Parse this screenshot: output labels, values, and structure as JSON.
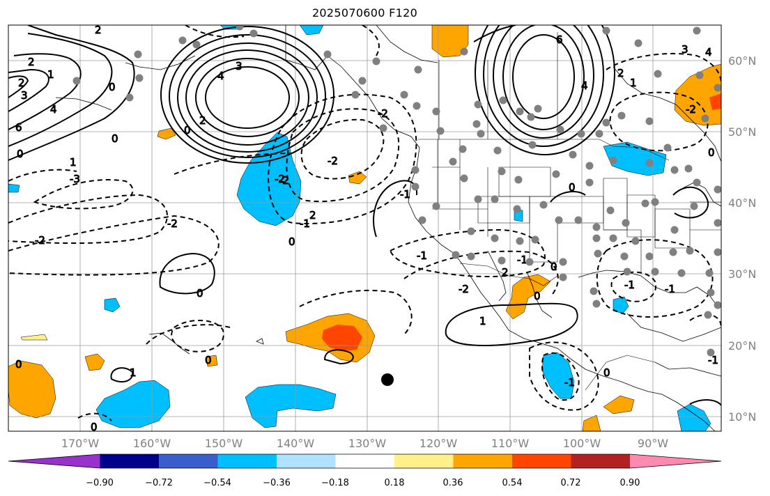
{
  "title": "2025070600 F120",
  "map": {
    "lon_ticks": [
      "170°W",
      "160°W",
      "150°W",
      "140°W",
      "130°W",
      "120°W",
      "110°W",
      "100°W",
      "90°W"
    ],
    "lat_ticks": [
      "60°N",
      "50°N",
      "40°N",
      "30°N",
      "20°N",
      "10°N"
    ],
    "contour_labels": [
      "2",
      "2",
      "1",
      "3",
      "0",
      "4",
      "6",
      "0",
      "4",
      "3",
      "2",
      "0",
      "2",
      "-3",
      "-2",
      "1",
      "0",
      "-2",
      "0",
      "-2",
      "-2",
      "-1",
      "2",
      "-1",
      "0",
      "1",
      "-1",
      "2",
      "-2",
      "0",
      "-1",
      "6",
      "4",
      "0",
      "-2",
      "0",
      "-1",
      "-2",
      "1",
      "3",
      "4",
      "2",
      "-1",
      "0",
      "-1",
      "-2",
      "1",
      "0",
      "-1",
      "0",
      "0",
      "0"
    ],
    "marker": "storm-center-dot"
  },
  "colorbar": {
    "colors": [
      "#9932cc",
      "#00008b",
      "#3a5fcd",
      "#00bfff",
      "#b0e2ff",
      "#ffffff",
      "#fff08a",
      "#ffa500",
      "#ff4500",
      "#b22222",
      "#ff89b0"
    ],
    "tick_labels": [
      "−0.90",
      "−0.72",
      "−0.54",
      "−0.36",
      "−0.18",
      "0.18",
      "0.36",
      "0.54",
      "0.72",
      "0.90"
    ]
  }
}
